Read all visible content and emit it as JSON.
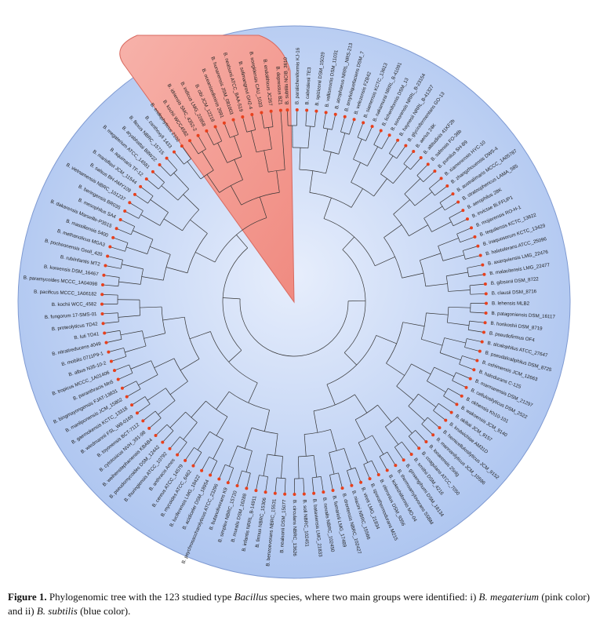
{
  "figure": {
    "root_label": "",
    "colors": {
      "blue_group_fill": "#c9d8f6",
      "pink_group_fill": "#f5a39a",
      "leaf_dot": "#e8401c",
      "branch": "#333333"
    },
    "groups": [
      {
        "name": "B. megaterium",
        "color": "pink"
      },
      {
        "name": "B. subtilis",
        "color": "blue"
      }
    ],
    "leaves": [
      "B. subtilis NCIB_3610",
      "B. paralicheniformis KJ-16",
      "B. cabrialesii TE3",
      "B. spizizenii DSM_15029",
      "B. vallismortis DSM_11031",
      "B. atrophaeus NRRL_NRS-213",
      "B. amyloliquefaciens DSM_7",
      "B. velezensis FZB42",
      "B. siamensis KCTC_13613",
      "B. nakamurai NRRL_B-41091",
      "B. licheniformis DSM_13",
      "B. sonorensis NRRL_B-23154",
      "B. haynesii NRRL_B-41327",
      "B. glycinifermentans GO-13",
      "B. aerius 24K",
      "B. altitudinis 41KF2b",
      "B. safensis FO-36b",
      "B. pumilus SH-B9",
      "B. xiamenensis HYC-10",
      "B. zhangzhouensis DW5-4",
      "B. australimaris MCCC_1A05787",
      "B. stratosphericus LAMA_585",
      "B. aerophilus 28K",
      "B. invictae Bi.FFUP1",
      "B. mojavensis RO-H-1",
      "B. tequilensis KCTC_13622",
      "B. inaquosorum KCTC_13429",
      "B. halotolerans ATCC_25096",
      "B. axarquiensis LMG_22476",
      "B. malacitensis LMG_22477",
      "B. gibsonii DSM_8722",
      "B. clausii DSM_8716",
      "B. lehensis MLB2",
      "B. patagoniensis DSM_16117",
      "B. horikoshii DSM_8719",
      "B. pseudofirmus OF4",
      "B. alcalophilus ATCC_27647",
      "B. pseudalcaliphilus DSM_8725",
      "B. oshimensis JCM_12663",
      "B. halodurans C-125",
      "B. marmarensis DSM_21297",
      "B. cellulosilyticus DSM_2522",
      "B. okhensis Kh10-101",
      "B. wakoensis JCM_9140",
      "B. akibai JCM_9157",
      "B. krulwichiae AM31D",
      "B. hemicellulosilyticus JCM_9152",
      "B. mannanilyticus JCM_10596",
      "B. lonarensis 25nlg",
      "B. coagulans ATCC_7050",
      "B. smithii DSM_4216",
      "B. ginsengihumi DSM_18134",
      "B. thermoamylovorans SSBM",
      "B. kokeshiiformis MO-04",
      "B. oleronius DSM_9356",
      "B. sporothermodurans M215",
      "B. vireti LMG_21834",
      "B. niacini NBRC_15566",
      "B. drentensis NBRC_102427",
      "B. fumarioli LMG_17489",
      "B. novalis NBRC_102450",
      "B. bataviensis LMG_21833",
      "B. soli NBRC_102451",
      "B. circulans NBRC_13626",
      "B. nealsonii DSM_15077",
      "B. benzoevorans NBRC_15531",
      "B. firmus NBRC_15306",
      "B. infantis NRRL_B-14911",
      "B. muralis DSM_16288",
      "B. simplex NBRC_15720",
      "B. butanolivorans K9",
      "B. psychrosaccharolyticus ATCC_23296",
      "B. acidiceler DSM_18954",
      "B. luciferensis LMG_18422",
      "B. mycoides ATCC_6462",
      "B. cereus ATCC_14579",
      "B. anthracis Ames",
      "B. thuringiensis ATCC_10792",
      "B. pseudomycoides DSM_12442",
      "B. weihenstephanensis KBAB4",
      "B. cytotoxicus NVH_391-98",
      "B. toyonensis BCT-7112",
      "B. wiedmannii FSL_W8-0169",
      "B. gaemokensis KCTC_13318",
      "B. manliponensis JCM_15802",
      "B. bingmayongensis FJAT-13831",
      "B. paranthracis Mn5",
      "B. tropicus MCCC_1A01406",
      "B. albus N35-10-2",
      "B. mobilis 0711P9-1",
      "B. nitratireducens 4049",
      "B. luti TD41",
      "B. proteolyticus TD42",
      "B. fungorum 17-SMS-01",
      "B. kochii WCC_4582",
      "B. pacificus MCCC_1A06182",
      "B. paramycoides MCCC_1A04098",
      "B. koreensis DSM_16467",
      "B. rubiinfantis MT2",
      "B. pocheonensis Gsoil_420",
      "B. methanolicus MGA3",
      "B. massiliensis 5400",
      "B. dakarensis Marseille-P3515",
      "B. mesophilus SA4",
      "B. beringensis BR035",
      "B. vietnamensis NBRC_101237",
      "B. salsus BH-AMY109",
      "B. marisflavi JCM_11544",
      "B. aquimaris TF-12",
      "B. megaterium ATCC_14581",
      "B. aryabhattai B8W22",
      "B. flexus NBRC_15715",
      "B. zanthoxyli 1433",
      "B. endophyticus 2102",
      "B. kochii WCC4582",
      "B. idriensis SMC_4352-2",
      "B. indicus LMG_22858",
      "B. cibi JCM_12218",
      "B. oceanisediminis 2691",
      "B. hunanensis JSM_081003",
      "B. nealsonii ATCC_BAA-519",
      "B. solimangrovi GH2-4",
      "B. songklensis CAU_1033",
      "B. endolithicus JC267",
      "B. depressus BZ1"
    ]
  },
  "caption": {
    "label": "Figure 1.",
    "text_1": "Phylogenomic tree with the 123 studied type ",
    "genus": "Bacillus",
    "text_2": " species, where two main groups were identified: i) ",
    "group_1": "B. megaterium",
    "text_3": " (pink color) and ii) ",
    "group_2": "B. subtilis",
    "text_4": " (blue color)."
  }
}
